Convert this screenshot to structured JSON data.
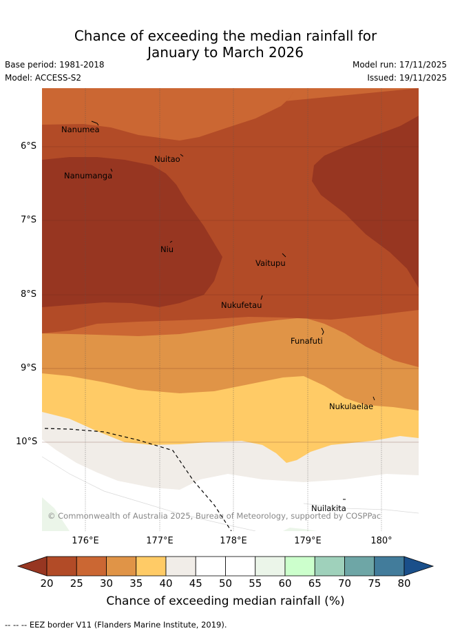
{
  "title": {
    "line1": "Chance of exceeding the median rainfall for",
    "line2": "January to March 2026"
  },
  "meta": {
    "base_period": "Base period: 1981-2018",
    "model": "Model: ACCESS-S2",
    "model_run": "Model run: 17/11/2025",
    "issued": "Issued: 19/11/2025"
  },
  "map": {
    "lat_labels": [
      "6°S",
      "7°S",
      "8°S",
      "9°S",
      "10°S"
    ],
    "lon_labels": [
      "176°E",
      "177°E",
      "178°E",
      "179°E",
      "180°"
    ],
    "places": [
      {
        "name": "Nanumea"
      },
      {
        "name": "Nuitao"
      },
      {
        "name": "Nanumanga"
      },
      {
        "name": "Niu"
      },
      {
        "name": "Vaitupu"
      },
      {
        "name": "Nukufetau"
      },
      {
        "name": "Funafuti"
      },
      {
        "name": "Nukulaelae"
      },
      {
        "name": "Nuilakita"
      }
    ],
    "copyright": "© Commonwealth of Australia 2025, Bureau of Meteorology, supported by COSPPac"
  },
  "colorbar": {
    "ticks": [
      "20",
      "25",
      "30",
      "35",
      "40",
      "45",
      "50",
      "55",
      "60",
      "65",
      "70",
      "75",
      "80"
    ],
    "label": "Chance of exceeding median rainfall (%)",
    "colors": [
      "#973621",
      "#b24b27",
      "#cb6733",
      "#e09447",
      "#ffcb66",
      "#f1ede8",
      "#ffffff",
      "#ffffff",
      "#ebf5e9",
      "#ccffcc",
      "#9fd1bb",
      "#6ea6a6",
      "#427c9b",
      "#1a4f8a"
    ],
    "under_color": "#973621",
    "over_color": "#1a4f8a"
  },
  "legend": {
    "eez": "-- -- -- EEZ border V11 (Flanders Marine Institute, 2019)."
  }
}
